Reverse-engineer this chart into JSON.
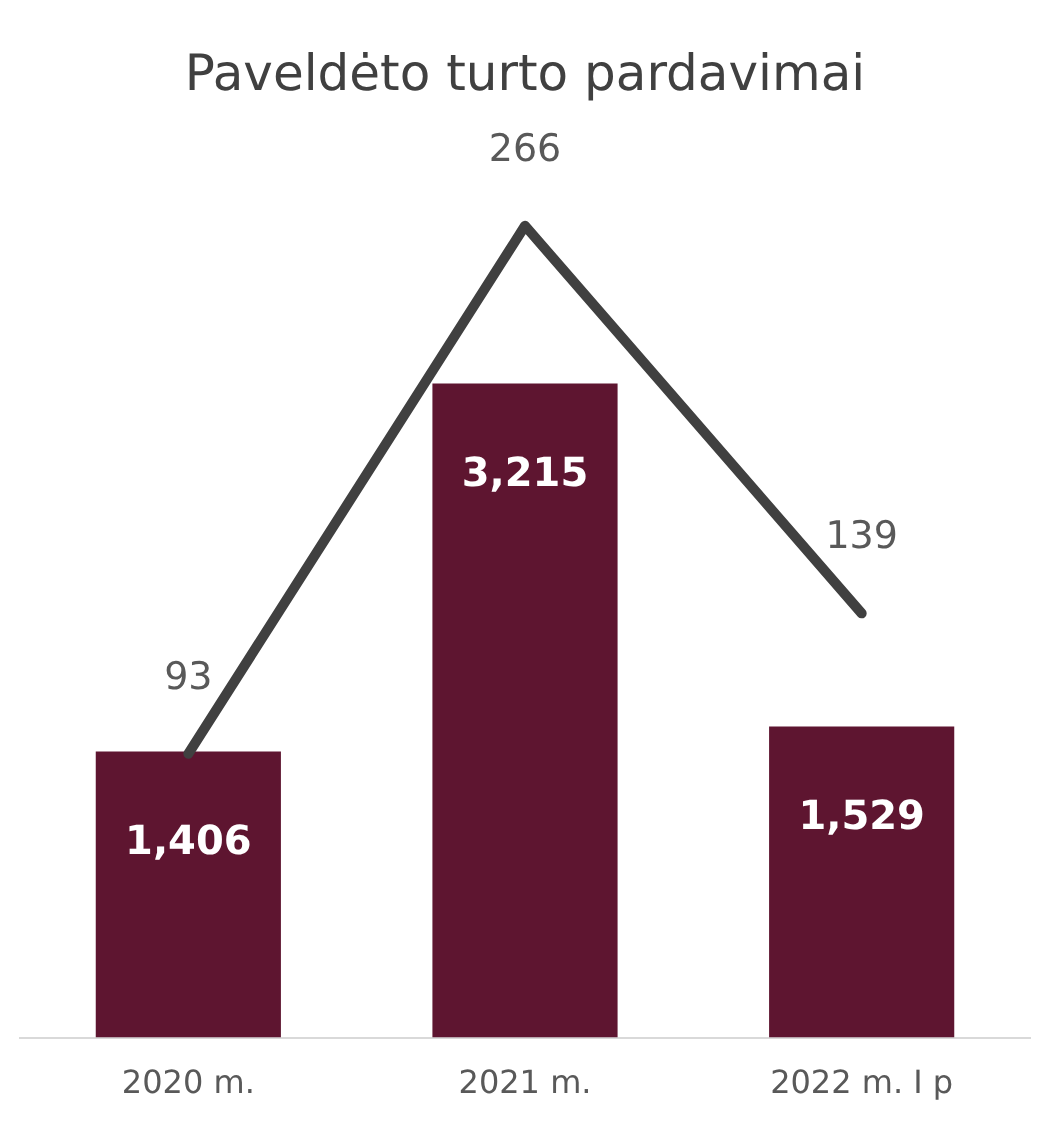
{
  "chart_data": {
    "type": "bar",
    "title": "Paveldėto turto pardavimai",
    "categories": [
      "2020 m.",
      "2021 m.",
      "2022 m. I p"
    ],
    "series": [
      {
        "color": "#5e1530",
        "values": [
          1406,
          3215,
          1529
        ],
        "value_labels": [
          "1,406",
          "3,215",
          "1,529"
        ]
      },
      {
        "type": "line",
        "axis": "y2",
        "color": "#404040",
        "values": [
          93,
          266,
          139
        ],
        "value_labels": [
          "93",
          "266",
          "139"
        ]
      }
    ],
    "grid": false,
    "legend": false,
    "marker": "none",
    "tick_labels": "x"
  }
}
